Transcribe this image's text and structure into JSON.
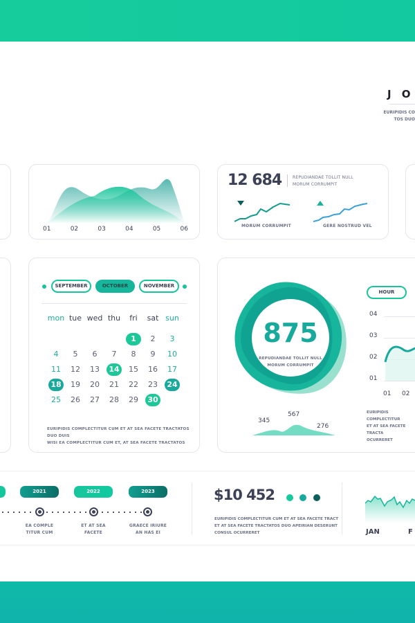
{
  "header": {
    "title": "J O",
    "subtitle": [
      "EURIPIDIS CO",
      "TOS DUO"
    ]
  },
  "area_card": {
    "x_labels": [
      "01",
      "02",
      "03",
      "04",
      "05",
      "06"
    ]
  },
  "stats_card": {
    "value": "12 684",
    "desc": [
      "REPUDIANDAE TOLLIT NULL",
      "MORUM CORRUMPIT"
    ],
    "spark1": {
      "label": "MORUM CORRUMPIT",
      "trend": "down"
    },
    "spark2": {
      "label": "GERE NOSTRUD VEL",
      "trend": "up"
    }
  },
  "calendar": {
    "months": [
      "SEPTEMBER",
      "OCTOBER",
      "NOVEMBER"
    ],
    "selected_month": "OCTOBER",
    "weekdays": [
      "mon",
      "tue",
      "wed",
      "thu",
      "fri",
      "sat",
      "sun"
    ],
    "first_weekday_index": 4,
    "days_in_month": 30,
    "highlighted": [
      1,
      14,
      18,
      24,
      30
    ],
    "footer": [
      "EURIPIDIS COMPLECTITUR CUM ET AT SEA FACETE TRACTATOS DUO DUIS",
      "WISI EA COMPLECTITUR CUM ET, AT SEA FACETE TRACTATOS"
    ]
  },
  "blob_card": {
    "value": "875",
    "desc": [
      "REPUDIANDAE TOLLIT NULL",
      "MORUM CORRUMPIT"
    ],
    "mini_values": [
      "345",
      "567",
      "276"
    ],
    "hour_button": "HOUR",
    "y_labels": [
      "04",
      "03",
      "02",
      "01"
    ],
    "x_labels": [
      "01",
      "02"
    ],
    "footer": [
      "EURIPIDIS COMPLECTITUR",
      "ET AT SEA FACETE TRACTA",
      "OCURRERET"
    ]
  },
  "timeline": {
    "items": [
      {
        "year": "2021",
        "text": [
          "EA COMPLE",
          "TITUR CUM"
        ]
      },
      {
        "year": "2022",
        "text": [
          "ET AT SEA",
          "FACETE"
        ]
      },
      {
        "year": "2023",
        "text": [
          "GRAECE IRIURE",
          "AN HAS EI"
        ]
      }
    ]
  },
  "money": {
    "value": "$10 452",
    "footer": [
      "EURIPIDIS COMPLECTITUR CUM ET AT SEA FACETE TRACT",
      "ET AT SEA FACETE TRACTATOS DUO APEIRIAN DESERUNT",
      "CONSUL OCURRERET"
    ],
    "dot_colors": [
      "#17c99c",
      "#16a99c",
      "#0c5f5a"
    ]
  },
  "month_chart": {
    "labels": [
      "JAN",
      "F"
    ]
  },
  "colors": {
    "accent": "#17c99c",
    "dark": "#3d4156",
    "teal_dark": "#0c6e66"
  }
}
